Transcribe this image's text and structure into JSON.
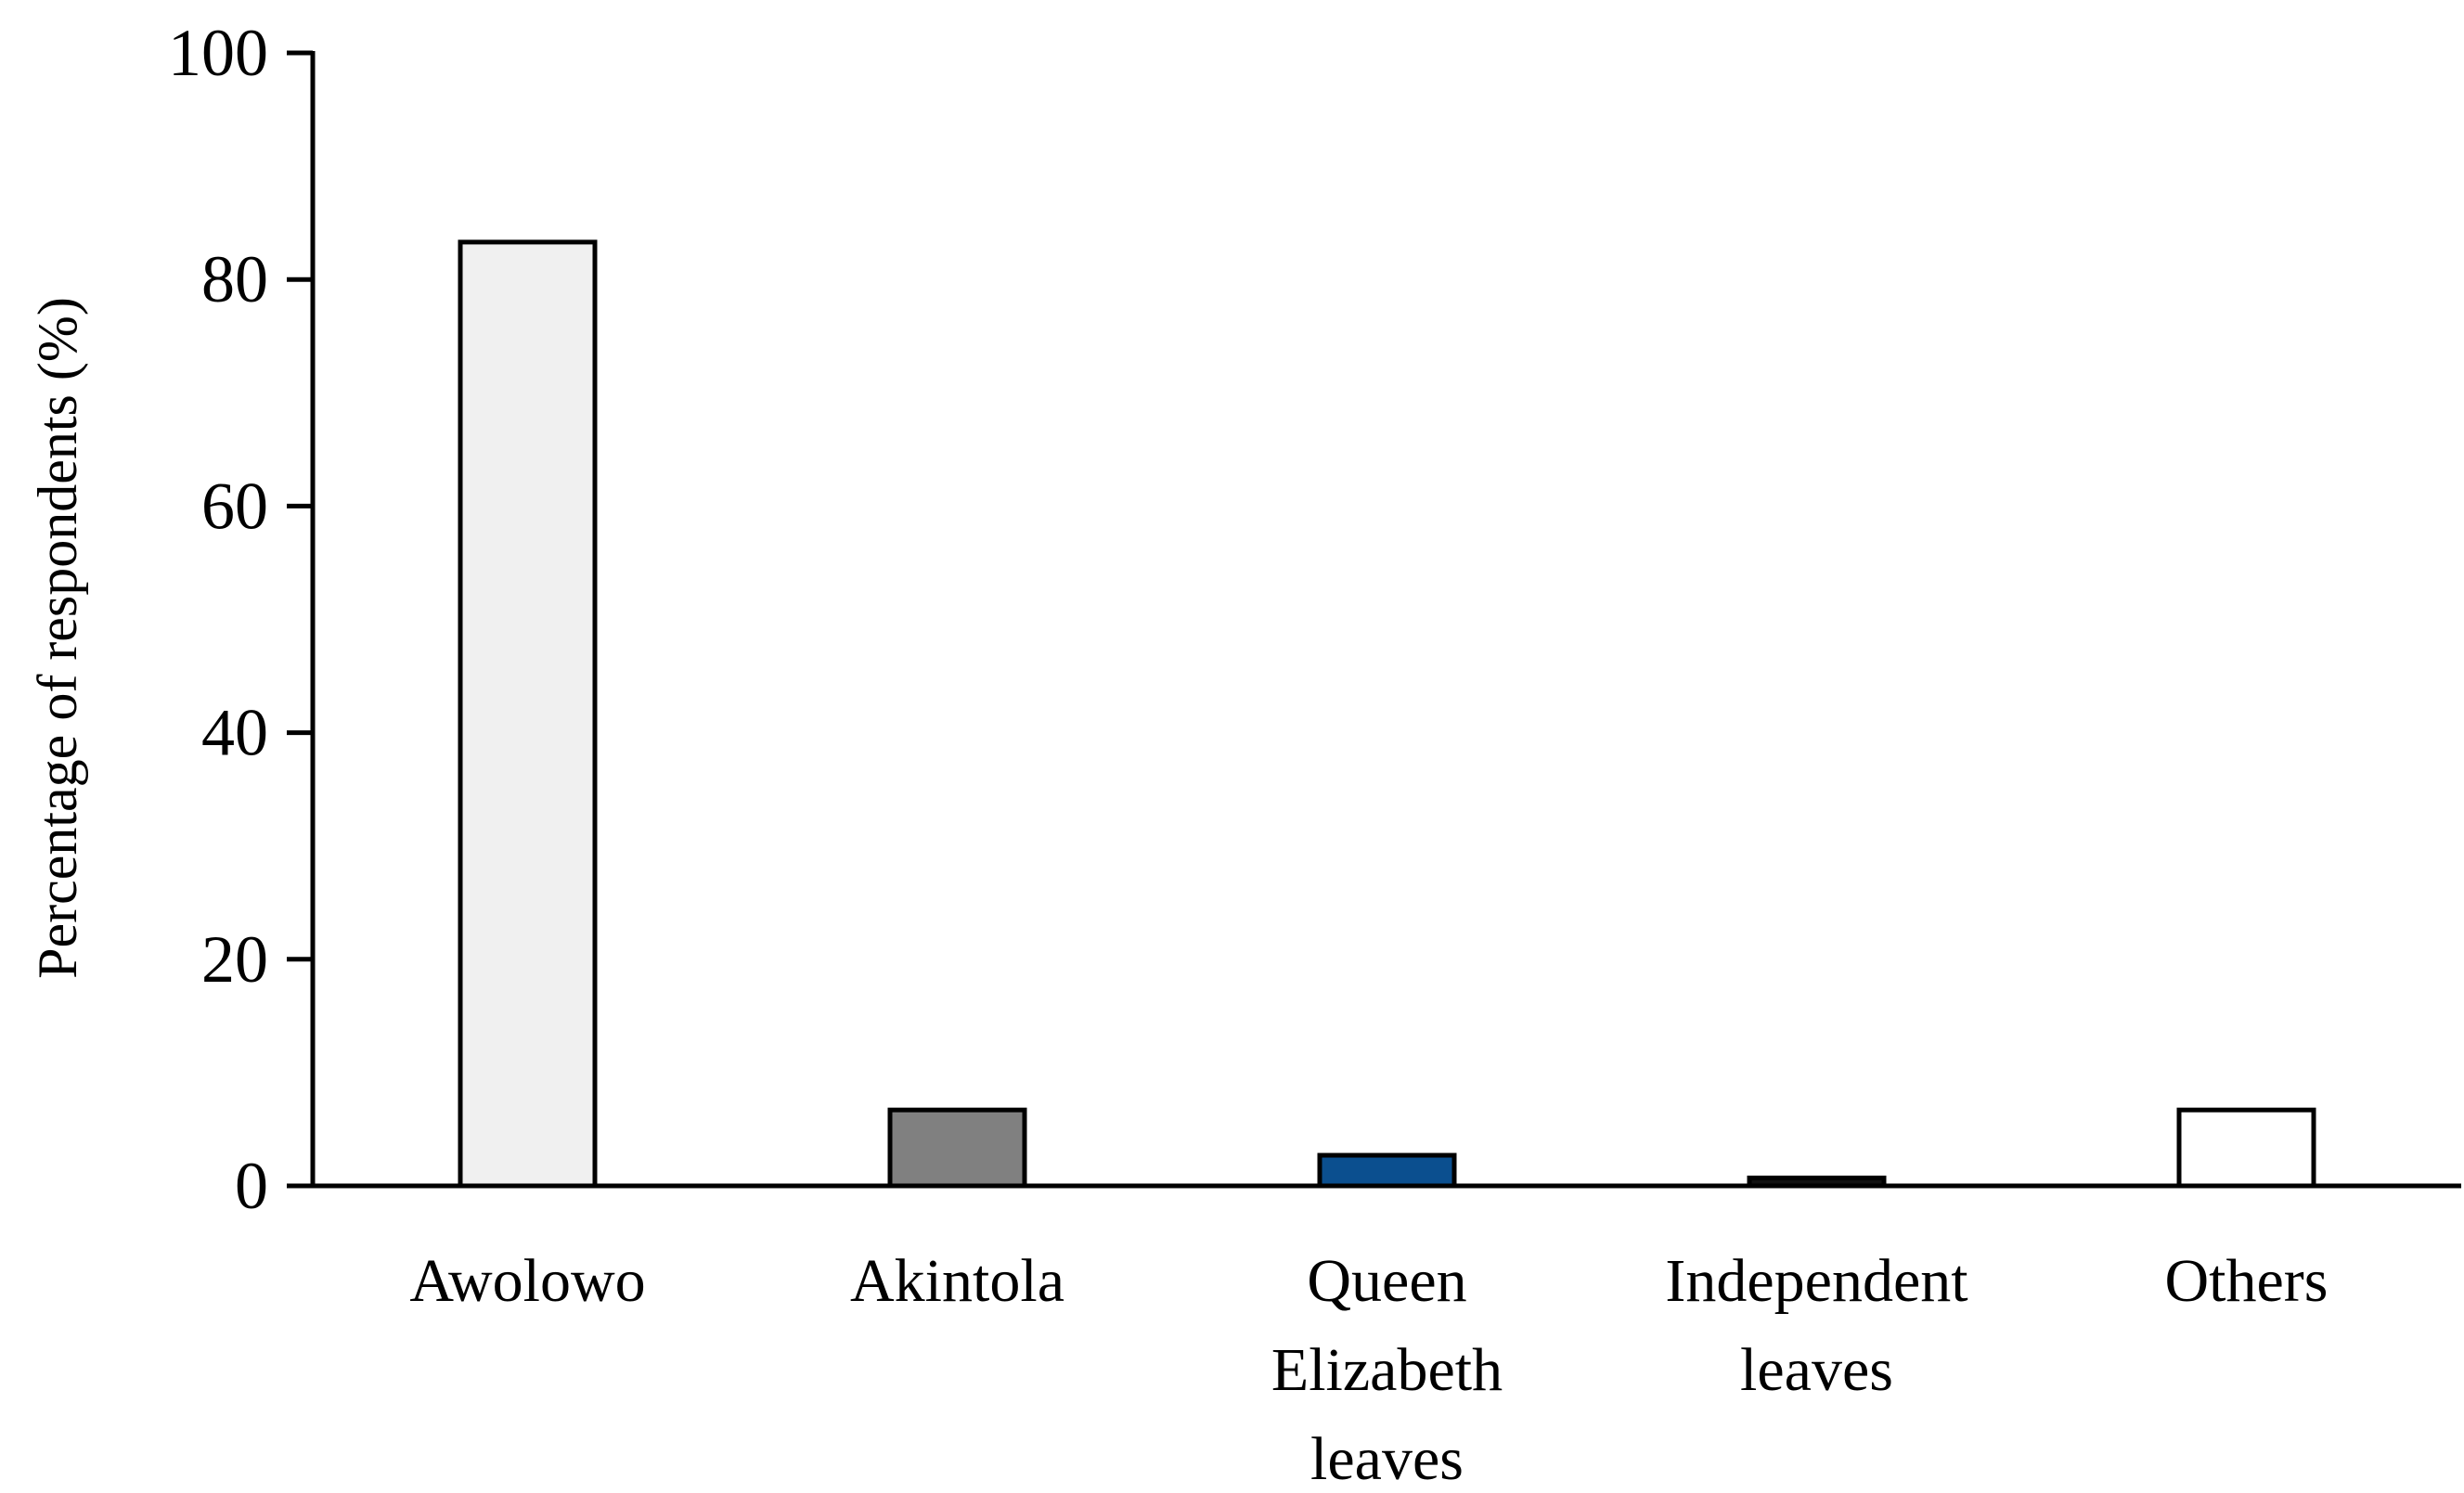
{
  "chart_data": {
    "type": "bar",
    "title": "",
    "xlabel": "",
    "ylabel": "Percentage of respondents (%)",
    "ylim": [
      0,
      100
    ],
    "yticks": [
      0,
      20,
      40,
      60,
      80,
      100
    ],
    "ytick_labels": [
      "0",
      "20",
      "40",
      "60",
      "80",
      "100"
    ],
    "grid": false,
    "legend": "none",
    "categories": [
      [
        "Awolowo"
      ],
      [
        "Akintola"
      ],
      [
        "Queen",
        "Elizabeth",
        "leaves"
      ],
      [
        "Independent",
        "leaves"
      ],
      [
        "Others"
      ]
    ],
    "values": [
      83.3,
      6.7,
      2.7,
      0.7,
      6.7
    ],
    "bar_colors": [
      "#f0f0f0",
      "#808080",
      "#0b4f8f",
      "#111111",
      "#ffffff"
    ],
    "bar_edge_color": "#000000"
  }
}
